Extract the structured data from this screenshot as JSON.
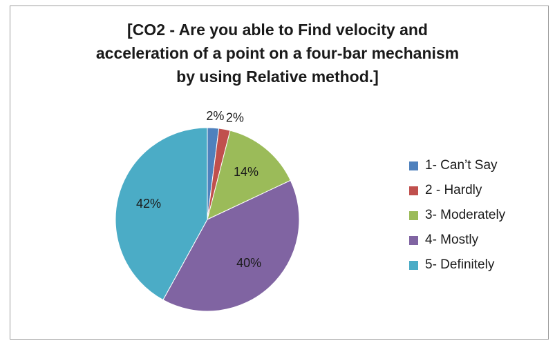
{
  "chart_data": {
    "type": "pie",
    "title_lines": [
      "[CO2 - Are you able to Find velocity and",
      "acceleration of a point on a four-bar mechanism",
      "by using Relative method.]"
    ],
    "categories": [
      "1- Can’t Say",
      "2 - Hardly",
      "3- Moderately",
      "4- Mostly",
      "5- Definitely"
    ],
    "values": [
      2,
      2,
      14,
      40,
      42
    ],
    "data_labels": [
      "2%",
      "2%",
      "14%",
      "40%",
      "42%"
    ],
    "colors": [
      "#4f81bd",
      "#c0504d",
      "#9bbb59",
      "#8064a2",
      "#4bacc6"
    ],
    "legend_position": "right"
  }
}
